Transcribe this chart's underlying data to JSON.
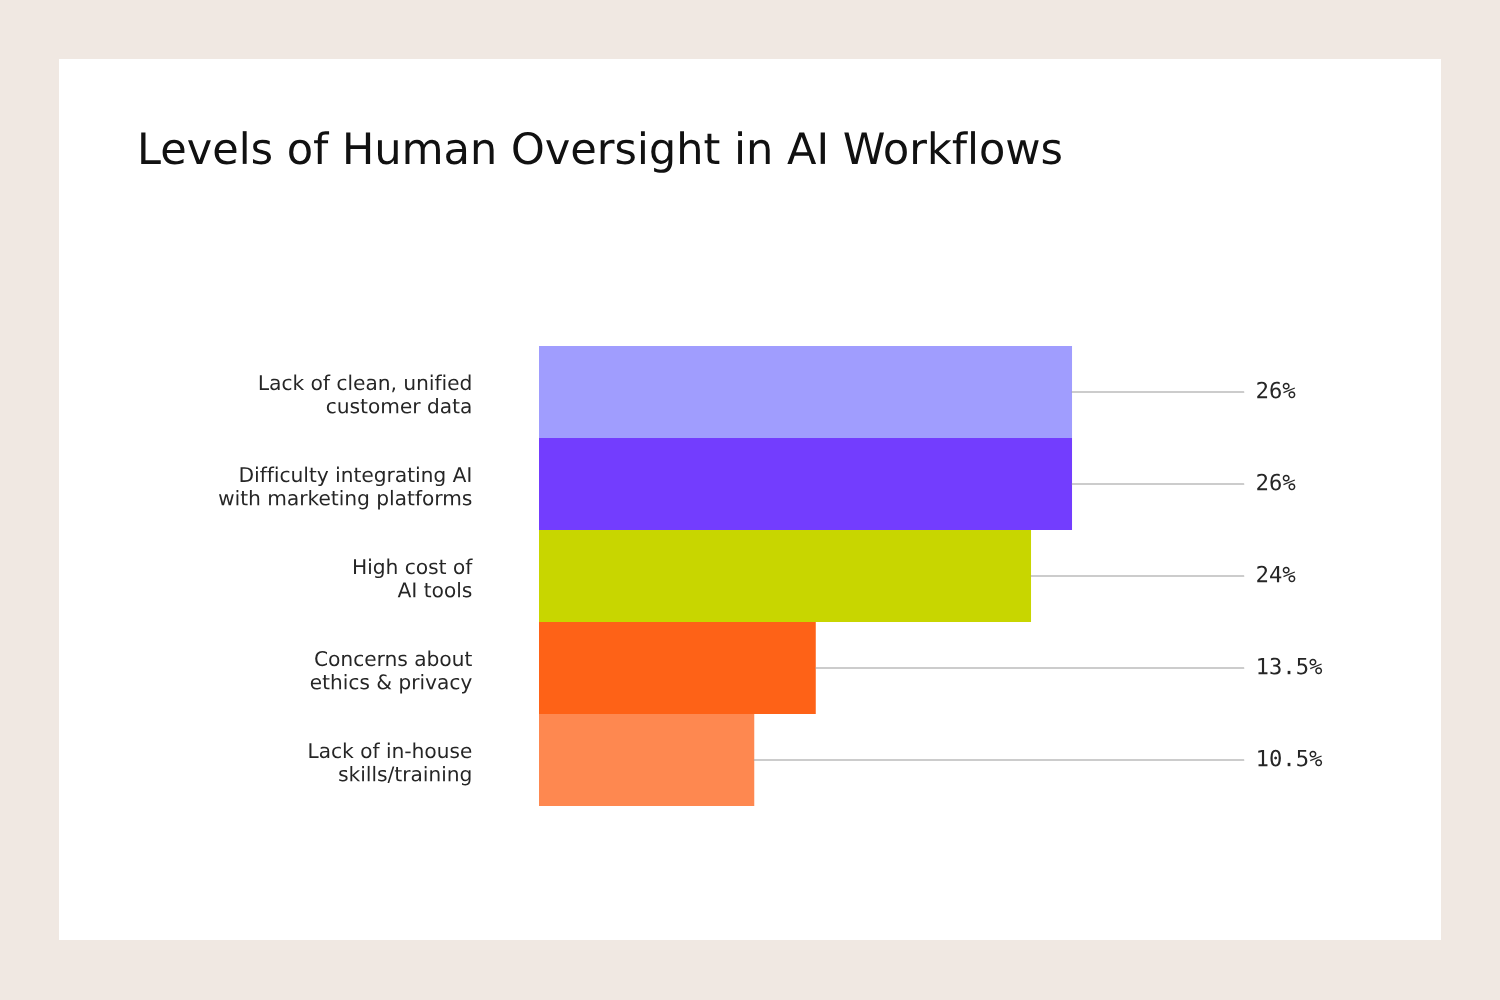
{
  "chart_data": {
    "type": "bar",
    "orientation": "horizontal",
    "title": "Levels of Human Oversight in AI Workflows",
    "categories": [
      "Lack of clean, unified\ncustomer data",
      "Difficulty integrating AI\nwith marketing platforms",
      "High cost of\nAI tools",
      "Concerns about\nethics & privacy",
      "Lack of in-house\nskills/training"
    ],
    "values": [
      26,
      26,
      24,
      13.5,
      10.5
    ],
    "colors": [
      "#a09dfe",
      "#733dfe",
      "#c8d600",
      "#fe6217",
      "#fe8850"
    ],
    "value_labels": [
      "26%",
      "26%",
      "24%",
      "13.5%",
      "10.5%"
    ]
  }
}
